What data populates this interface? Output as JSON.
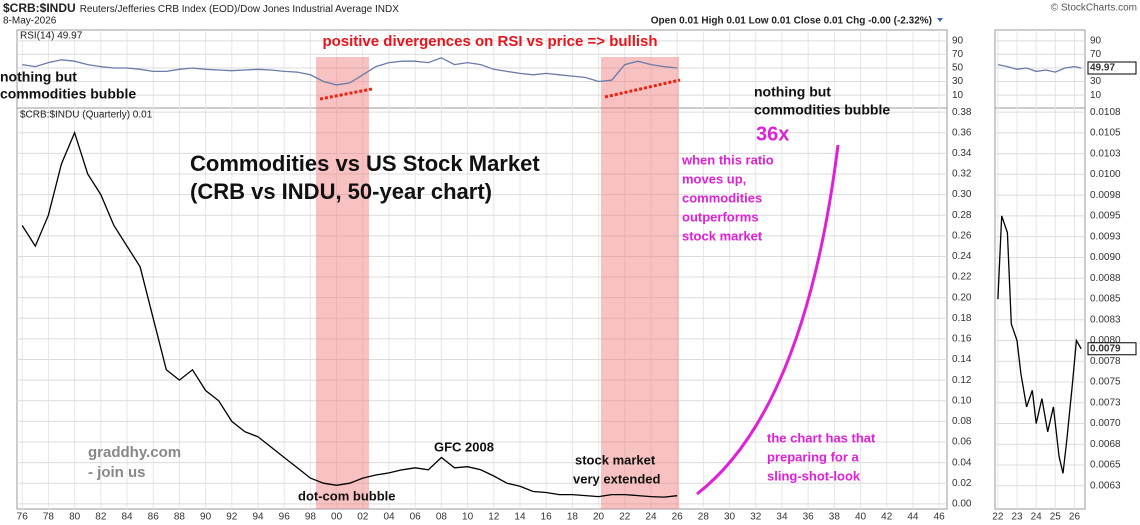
{
  "header": {
    "symbol": "$CRB:$INDU",
    "description": "Reuters/Jefferies CRB Index (EOD)/Dow Jones Industrial Average INDX",
    "date": "8-May-2026",
    "quote": "Open 0.01  High 0.01  Low 0.01  Close 0.01  Chg -0.00 (-2.32%)",
    "credit": "© StockCharts.com"
  },
  "chart_data": [
    {
      "type": "line",
      "title": "RSI(14) 49.97",
      "x": [
        1976,
        1977,
        1978,
        1979,
        1980,
        1981,
        1982,
        1983,
        1984,
        1985,
        1986,
        1987,
        1988,
        1989,
        1990,
        1991,
        1992,
        1993,
        1994,
        1995,
        1996,
        1997,
        1998,
        1999,
        2000,
        2001,
        2002,
        2003,
        2004,
        2005,
        2006,
        2007,
        2008,
        2009,
        2010,
        2011,
        2012,
        2013,
        2014,
        2015,
        2016,
        2017,
        2018,
        2019,
        2020,
        2021,
        2022,
        2023,
        2024,
        2025,
        2026
      ],
      "values": [
        55,
        52,
        58,
        62,
        60,
        55,
        52,
        50,
        50,
        48,
        45,
        45,
        48,
        50,
        48,
        47,
        46,
        47,
        48,
        47,
        45,
        44,
        40,
        30,
        25,
        28,
        40,
        52,
        58,
        60,
        60,
        58,
        65,
        55,
        58,
        55,
        48,
        45,
        42,
        40,
        42,
        40,
        38,
        36,
        30,
        32,
        55,
        60,
        55,
        52,
        50
      ],
      "color": "#6a7ba8",
      "xlim": [
        1975.6,
        2046.6
      ],
      "ylim": [
        -9,
        106
      ],
      "yticks": [
        10,
        30,
        50,
        70,
        90
      ]
    },
    {
      "type": "line",
      "title": "$CRB:$INDU (Quarterly) 0.01",
      "x": [
        1976,
        1977,
        1978,
        1979,
        1980,
        1981,
        1982,
        1983,
        1984,
        1985,
        1986,
        1987,
        1988,
        1989,
        1990,
        1991,
        1992,
        1993,
        1994,
        1995,
        1996,
        1997,
        1998,
        1999,
        2000,
        2001,
        2002,
        2003,
        2004,
        2005,
        2006,
        2007,
        2008,
        2009,
        2010,
        2011,
        2012,
        2013,
        2014,
        2015,
        2016,
        2017,
        2018,
        2019,
        2020,
        2021,
        2022,
        2023,
        2024,
        2025,
        2026
      ],
      "values": [
        0.27,
        0.25,
        0.28,
        0.33,
        0.36,
        0.32,
        0.3,
        0.27,
        0.25,
        0.23,
        0.18,
        0.13,
        0.12,
        0.13,
        0.11,
        0.1,
        0.08,
        0.07,
        0.065,
        0.055,
        0.045,
        0.035,
        0.025,
        0.02,
        0.018,
        0.02,
        0.025,
        0.028,
        0.03,
        0.033,
        0.035,
        0.033,
        0.045,
        0.035,
        0.036,
        0.033,
        0.027,
        0.02,
        0.017,
        0.012,
        0.011,
        0.009,
        0.009,
        0.008,
        0.007,
        0.009,
        0.009,
        0.008,
        0.007,
        0.0065,
        0.0079
      ],
      "color": "#000000",
      "xlim": [
        1975.6,
        2046.6
      ],
      "ylim": [
        -0.005,
        0.384
      ],
      "grid": true,
      "xticks": [
        {
          "value": 1976,
          "label": "76"
        },
        {
          "value": 1978,
          "label": "78"
        },
        {
          "value": 1980,
          "label": "80"
        },
        {
          "value": 1982,
          "label": "82"
        },
        {
          "value": 1984,
          "label": "84"
        },
        {
          "value": 1986,
          "label": "86"
        },
        {
          "value": 1988,
          "label": "88"
        },
        {
          "value": 1990,
          "label": "90"
        },
        {
          "value": 1992,
          "label": "92"
        },
        {
          "value": 1994,
          "label": "94"
        },
        {
          "value": 1996,
          "label": "96"
        },
        {
          "value": 1998,
          "label": "98"
        },
        {
          "value": 2000,
          "label": "00"
        },
        {
          "value": 2002,
          "label": "02"
        },
        {
          "value": 2004,
          "label": "04"
        },
        {
          "value": 2006,
          "label": "06"
        },
        {
          "value": 2008,
          "label": "08"
        },
        {
          "value": 2010,
          "label": "10"
        },
        {
          "value": 2012,
          "label": "12"
        },
        {
          "value": 2014,
          "label": "14"
        },
        {
          "value": 2016,
          "label": "16"
        },
        {
          "value": 2018,
          "label": "18"
        },
        {
          "value": 2020,
          "label": "20"
        },
        {
          "value": 2022,
          "label": "22"
        },
        {
          "value": 2024,
          "label": "24"
        },
        {
          "value": 2026,
          "label": "26"
        },
        {
          "value": 2028,
          "label": "28"
        },
        {
          "value": 2030,
          "label": "30"
        },
        {
          "value": 2032,
          "label": "32"
        },
        {
          "value": 2034,
          "label": "34"
        },
        {
          "value": 2036,
          "label": "36"
        },
        {
          "value": 2038,
          "label": "38"
        },
        {
          "value": 2040,
          "label": "40"
        },
        {
          "value": 2042,
          "label": "42"
        },
        {
          "value": 2044,
          "label": "44"
        },
        {
          "value": 2046,
          "label": "46"
        }
      ],
      "yticks": [
        {
          "value": 0,
          "label": "0.00"
        },
        0.02,
        0.04,
        0.06,
        0.08,
        {
          "value": 0.1,
          "label": "0.10"
        },
        0.12,
        0.14,
        0.16,
        0.18,
        {
          "value": 0.2,
          "label": "0.20"
        },
        0.22,
        0.24,
        0.26,
        0.28,
        {
          "value": 0.3,
          "label": "0.30"
        },
        0.32,
        0.34,
        0.36,
        0.38
      ],
      "annotations": {
        "divergence": "positive divergences on RSI vs price => bullish",
        "bubble_left": [
          "nothing but",
          "commodities bubble"
        ],
        "bubble_right": [
          "nothing but",
          "commodities bubble"
        ],
        "headline": [
          "Commodities vs US Stock Market",
          "(CRB vs INDU, 50-year chart)"
        ],
        "multiple": "36x",
        "ratio_note": [
          "when this ratio",
          "moves up,",
          "commodities",
          "outperforms",
          "stock market"
        ],
        "slingshot": [
          "the chart has that",
          "preparing for a",
          "sling-shot-look"
        ],
        "promo": [
          "graddhy.com",
          "- join us"
        ],
        "gfc": "GFC 2008",
        "dotcom": "dot-com bubble",
        "extended": [
          "stock market",
          "very extended"
        ]
      }
    },
    {
      "type": "line",
      "x": [
        2022,
        2022.5,
        2023,
        2023.5,
        2024,
        2024.5,
        2025,
        2025.5,
        2026,
        2026.35
      ],
      "values": [
        55,
        52,
        48,
        50,
        45,
        47,
        44,
        50,
        52,
        49.97
      ],
      "color": "#6a7ba8",
      "xlim": [
        2021.85,
        2026.55
      ],
      "ylim": [
        -9,
        106
      ],
      "yticks": [
        10,
        30,
        50,
        70,
        90
      ],
      "current_label": "49.97"
    },
    {
      "type": "line",
      "x": [
        2022,
        2022.2,
        2022.5,
        2022.7,
        2023,
        2023.2,
        2023.5,
        2023.8,
        2024,
        2024.3,
        2024.6,
        2024.9,
        2025.2,
        2025.4,
        2025.6,
        2025.9,
        2026.1,
        2026.35
      ],
      "values": [
        0.0085,
        0.0095,
        0.0093,
        0.0082,
        0.008,
        0.0076,
        0.0072,
        0.0074,
        0.007,
        0.0073,
        0.0069,
        0.0072,
        0.0066,
        0.0064,
        0.0068,
        0.0075,
        0.008,
        0.0079
      ],
      "color": "#000000",
      "xlim": [
        2021.85,
        2026.55
      ],
      "ylim": [
        0.00597,
        0.0108
      ],
      "grid": true,
      "xticks": [
        {
          "value": 2022,
          "label": "22"
        },
        {
          "value": 2023,
          "label": "23"
        },
        {
          "value": 2024,
          "label": "24"
        },
        {
          "value": 2025,
          "label": "25"
        },
        {
          "value": 2026,
          "label": "26"
        }
      ],
      "yticks": [
        {
          "value": 0.01075,
          "label": "0.0108"
        },
        0.0105,
        {
          "value": 0.01025,
          "label": "0.0103"
        },
        {
          "value": 0.01,
          "label": "0.0100"
        },
        {
          "value": 0.00975,
          "label": "0.0098"
        },
        {
          "value": 0.0095,
          "label": "0.0095"
        },
        {
          "value": 0.00925,
          "label": "0.0093"
        },
        {
          "value": 0.009,
          "label": "0.0090"
        },
        {
          "value": 0.00875,
          "label": "0.0088"
        },
        {
          "value": 0.0085,
          "label": "0.0085"
        },
        {
          "value": 0.00825,
          "label": "0.0083"
        },
        {
          "value": 0.008,
          "label": "0.0080"
        },
        {
          "value": 0.00775,
          "label": "0.0078"
        },
        {
          "value": 0.0075,
          "label": "0.0075"
        },
        {
          "value": 0.00725,
          "label": "0.0073"
        },
        {
          "value": 0.007,
          "label": "0.0070"
        },
        {
          "value": 0.00675,
          "label": "0.0068"
        },
        {
          "value": 0.0065,
          "label": "0.0065"
        },
        {
          "value": 0.00625,
          "label": "0.0063"
        }
      ],
      "current_label": "0.0079"
    }
  ]
}
